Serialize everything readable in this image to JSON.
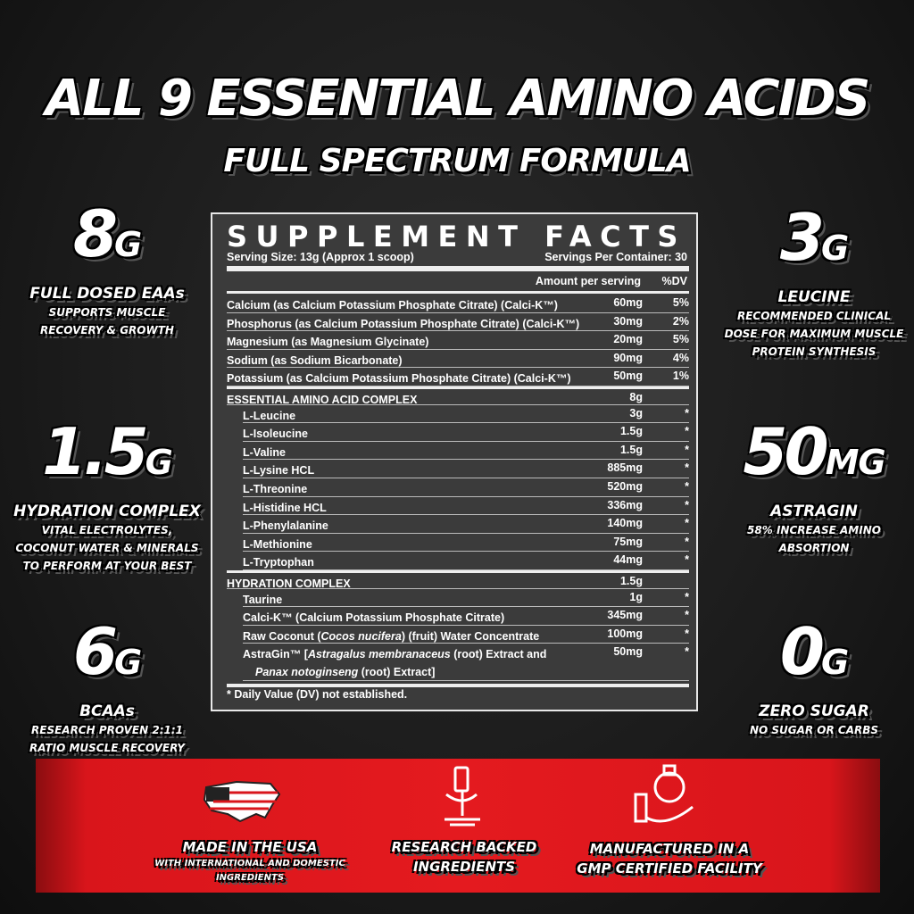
{
  "header": {
    "title": "ALL 9 ESSENTIAL AMINO ACIDS",
    "subtitle": "FULL SPECTRUM FORMULA"
  },
  "left_stats": [
    {
      "amount": "8",
      "unit": "G",
      "label": "FULL DOSED EAAs",
      "desc": [
        "SUPPORTS MUSCLE",
        "RECOVERY & GROWTH"
      ]
    },
    {
      "amount": "1.5",
      "unit": "G",
      "label": "HYDRATION COMPLEX",
      "desc": [
        "VITAL ELECTROLYTES,",
        "COCONUT WATER & MINERALS",
        "TO PERFORM AT YOUR BEST"
      ]
    },
    {
      "amount": "6",
      "unit": "G",
      "label": "BCAAs",
      "desc": [
        "RESEARCH PROVEN 2:1:1",
        "RATIO MUSCLE RECOVERY"
      ]
    }
  ],
  "right_stats": [
    {
      "amount": "3",
      "unit": "G",
      "label": "LEUCINE",
      "desc": [
        "RECOMMENDED CLINICAL",
        "DOSE FOR MAXIMUM MUSCLE",
        "PROTEIN SYNTHESIS"
      ]
    },
    {
      "amount": "50",
      "unit": "MG",
      "label": "ASTRAGIN",
      "desc": [
        "58% INCREASE AMINO",
        "ABSORTION"
      ]
    },
    {
      "amount": "0",
      "unit": "G",
      "label": "ZERO SUGAR",
      "desc": [
        "NO SUGAR OR CARBS"
      ]
    }
  ],
  "facts": {
    "title": "SUPPLEMENT FACTS",
    "serving_size": "Serving Size: 13g (Approx 1 scoop)",
    "servings": "Servings Per Container: 30",
    "col_amount": "Amount per serving",
    "col_dv": "%DV",
    "rows": [
      {
        "name": "Calcium (as Calcium Potassium Phosphate Citrate) (Calci-K™)",
        "amount": "60mg",
        "dv": "5%",
        "level": 0
      },
      {
        "name": "Phosphorus (as Calcium Potassium Phosphate Citrate) (Calci-K™)",
        "amount": "30mg",
        "dv": "2%",
        "level": 0
      },
      {
        "name": "Magnesium (as Magnesium Glycinate)",
        "amount": "20mg",
        "dv": "5%",
        "level": 0
      },
      {
        "name": "Sodium (as Sodium Bicarbonate)",
        "amount": "90mg",
        "dv": "4%",
        "level": 0
      },
      {
        "name": "Potassium (as Calcium Potassium Phosphate Citrate) (Calci-K™)",
        "amount": "50mg",
        "dv": "1%",
        "level": 0
      },
      {
        "name": "ESSENTIAL AMINO ACID COMPLEX",
        "amount": "8g",
        "level": 0,
        "section": true
      },
      {
        "name": "L-Leucine",
        "amount": "3g",
        "dv": "*",
        "level": 1
      },
      {
        "name": "L-Isoleucine",
        "amount": "1.5g",
        "dv": "*",
        "level": 1
      },
      {
        "name": "L-Valine",
        "amount": "1.5g",
        "dv": "*",
        "level": 1
      },
      {
        "name": "L-Lysine HCL",
        "amount": "885mg",
        "dv": "*",
        "level": 1
      },
      {
        "name": "L-Threonine",
        "amount": "520mg",
        "dv": "*",
        "level": 1
      },
      {
        "name": "L-Histidine HCL",
        "amount": "336mg",
        "dv": "*",
        "level": 1
      },
      {
        "name": "L-Phenylalanine",
        "amount": "140mg",
        "dv": "*",
        "level": 1
      },
      {
        "name": "L-Methionine",
        "amount": "75mg",
        "dv": "*",
        "level": 1
      },
      {
        "name": "L-Tryptophan",
        "amount": "44mg",
        "dv": "*",
        "level": 1
      },
      {
        "name": "HYDRATION COMPLEX",
        "amount": "1.5g",
        "level": 0,
        "section": true
      },
      {
        "name": "Taurine",
        "amount": "1g",
        "dv": "*",
        "level": 1
      },
      {
        "name": "Calci-K™ (Calcium Potassium Phosphate Citrate)",
        "amount": "345mg",
        "dv": "*",
        "level": 1
      },
      {
        "name": [
          [
            "Raw Coconut (",
            {
              "italic": "Cocos nucifera"
            },
            ") (fruit) Water Concentrate"
          ]
        ],
        "amount": "100mg",
        "dv": "*",
        "level": 1
      },
      {
        "name": [
          [
            "AstraGin™ [",
            {
              "italic": "Astragalus membranaceus"
            },
            " (root) Extract and"
          ],
          [
            {
              "italic": "Panax notoginseng"
            },
            " (root) Extract]"
          ]
        ],
        "amount": "50mg",
        "dv": "*",
        "level": 1
      }
    ],
    "footnote": "* Daily Value (DV) not established."
  },
  "banner": [
    {
      "title": [
        "MADE IN THE USA"
      ],
      "note": [
        "WITH INTERNATIONAL AND DOMESTIC",
        "INGREDIENTS"
      ]
    },
    {
      "title": [
        "RESEARCH BACKED",
        "INGREDIENTS"
      ]
    },
    {
      "title": [
        "MANUFACTURED IN A",
        "GMP CERTIFIED FACILITY"
      ]
    }
  ]
}
